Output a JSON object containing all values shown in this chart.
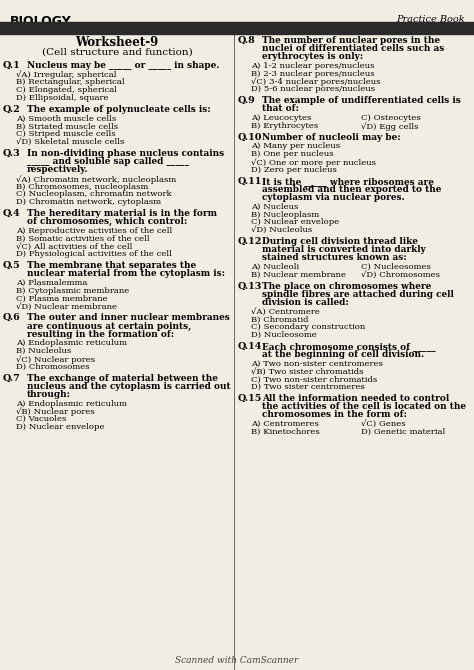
{
  "title_left": "BIOLOGY",
  "title_right": "Practice Book",
  "worksheet_title": "Worksheet-9",
  "worksheet_subtitle": "(Cell structure and function)",
  "bg_color": "#f2ede3",
  "header_bar_color": "#2a2a2a",
  "left_questions": [
    {
      "num": "Q.1",
      "bold": "Nucleus may be _____ or _____ in shape.",
      "options": [
        [
          true,
          "A) Irregular, spherical"
        ],
        [
          false,
          "B) Rectangular, spherical"
        ],
        [
          false,
          "C) Elongated, spherical"
        ],
        [
          false,
          "D) Ellipsoidal, square"
        ]
      ]
    },
    {
      "num": "Q.2",
      "bold": "The example of polynucleate cells is:",
      "options": [
        [
          false,
          "A) Smooth muscle cells"
        ],
        [
          false,
          "B) Striated muscle cells"
        ],
        [
          false,
          "C) Striped muscle cells"
        ],
        [
          true,
          "D) Skeletal muscle cells"
        ]
      ]
    },
    {
      "num": "Q.3",
      "bold": "In non-dividing phase nucleus contains\n_____ and soluble sap called _____\nrespectively.",
      "options": [
        [
          true,
          "A) Chromatin network, nucleoplasm"
        ],
        [
          false,
          "B) Chromosomes, nucleoplasm"
        ],
        [
          false,
          "C) Nucleoplasm, chromatin network"
        ],
        [
          false,
          "D) Chromatin network, cytoplasm"
        ]
      ]
    },
    {
      "num": "Q.4",
      "bold": "The hereditary material is in the form\nof chromosomes, which control:",
      "options": [
        [
          false,
          "A) Reproductive activities of the cell"
        ],
        [
          false,
          "B) Somatic activities of the cell"
        ],
        [
          true,
          "C) All activities of the cell"
        ],
        [
          false,
          "D) Physiological activities of the cell"
        ]
      ]
    },
    {
      "num": "Q.5",
      "bold": "The membrane that separates the\nnuclear material from the cytoplasm is:",
      "options": [
        [
          false,
          "A) Plasmalemma"
        ],
        [
          false,
          "B) Cytoplasmic membrane"
        ],
        [
          false,
          "C) Plasma membrane"
        ],
        [
          true,
          "D) Nuclear membrane"
        ]
      ]
    },
    {
      "num": "Q.6",
      "bold": "The outer and inner nuclear membranes\nare continuous at certain points,\nresulting in the formation of:",
      "options": [
        [
          false,
          "A) Endoplasmic reticulum"
        ],
        [
          false,
          "B) Nucleolus"
        ],
        [
          true,
          "C) Nuclear pores"
        ],
        [
          false,
          "D) Chromosomes"
        ]
      ]
    },
    {
      "num": "Q.7",
      "bold": "The exchange of material between the\nnucleus and the cytoplasm is carried out\nthrough:",
      "options": [
        [
          false,
          "A) Endoplasmic reticulum"
        ],
        [
          true,
          "B) Nuclear pores"
        ],
        [
          false,
          "C) Vacuoles"
        ],
        [
          false,
          "D) Nuclear envelope"
        ]
      ]
    }
  ],
  "right_questions": [
    {
      "num": "Q.8",
      "bold": "The number of nuclear pores in the\nnuclei of differentiated cells such as\nerythrocytes is only:",
      "options": [
        [
          false,
          "A) 1-2 nuclear pores/nucleus"
        ],
        [
          false,
          "B) 2-3 nuclear pores/nucleus"
        ],
        [
          true,
          "C) 3-4 nuclear pores/nucleus"
        ],
        [
          false,
          "D) 5-6 nuclear pores/nucleus"
        ]
      ]
    },
    {
      "num": "Q.9",
      "bold": "The example of undifferentiated cells is\nthat of:",
      "options_two_col": [
        [
          false,
          "A) Leucocytes",
          false,
          "C) Osteocytes"
        ],
        [
          false,
          "B) Erythrocytes",
          true,
          "D) Egg cells"
        ]
      ]
    },
    {
      "num": "Q.10",
      "bold": "Number of nucleoli may be:",
      "options": [
        [
          false,
          "A) Many per nucleus"
        ],
        [
          false,
          "B) One per nucleus"
        ],
        [
          true,
          "C) One or more per nucleus"
        ],
        [
          false,
          "D) Zero per nucleus"
        ]
      ]
    },
    {
      "num": "Q.11",
      "bold": "It is the _____ where ribosomes are\nassembled and then exported to the\ncytoplasm via nuclear pores.",
      "options": [
        [
          false,
          "A) Nucleus"
        ],
        [
          false,
          "B) Nucleoplasm"
        ],
        [
          false,
          "C) Nuclear envelope"
        ],
        [
          true,
          "D) Nucleolus"
        ]
      ]
    },
    {
      "num": "Q.12",
      "bold": "During cell division thread like\nmaterial is converted into darkly\nstained structures known as:",
      "options_two_col": [
        [
          false,
          "A) Nucleoli",
          false,
          "C) Nucleosomes"
        ],
        [
          false,
          "B) Nuclear membrane",
          true,
          "D) Chromosomes"
        ]
      ]
    },
    {
      "num": "Q.13",
      "bold": "The place on chromosomes where\nspindle fibres are attached during cell\ndivision is called:",
      "options": [
        [
          true,
          "A) Centromere"
        ],
        [
          false,
          "B) Chromatid"
        ],
        [
          false,
          "C) Secondary construction"
        ],
        [
          false,
          "D) Nucleosome"
        ]
      ]
    },
    {
      "num": "Q.14",
      "bold": "Each chromosome consists of _____\nat the beginning of cell division.",
      "options": [
        [
          false,
          "A) Two non-sister centromeres"
        ],
        [
          true,
          "B) Two sister chromatids"
        ],
        [
          false,
          "C) Two non-sister chromatids"
        ],
        [
          false,
          "D) Two sister centromeres"
        ]
      ]
    },
    {
      "num": "Q.15",
      "bold": "All the information needed to control\nthe activities of the cell is located on the\nchromosomes in the form of:",
      "options_two_col": [
        [
          false,
          "A) Centromeres",
          true,
          "C) Genes"
        ],
        [
          false,
          "B) Kinetochores",
          false,
          "D) Genetic material"
        ]
      ]
    }
  ],
  "footer": "Scanned with CamScanner"
}
